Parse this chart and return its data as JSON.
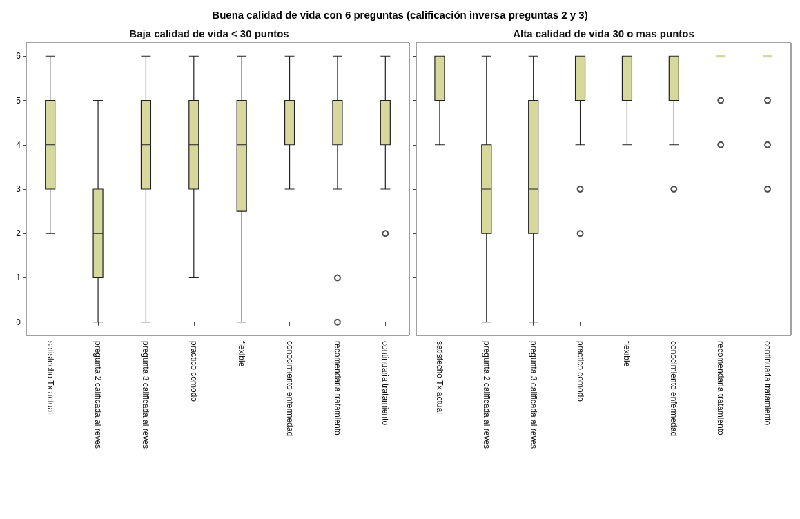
{
  "chart_data": [
    {
      "type": "box",
      "title": "Buena calidad de vida con 6 preguntas (calificación inversa preguntas 2 y 3)",
      "subtitle": "Baja calidad de vida < 30 puntos",
      "categories": [
        "satisfecho Tx actual",
        "pregunta 2 calificada al reves",
        "pregunta 3 calificada al reves",
        "practico comodo",
        "flexible",
        "conocimiento enfermedad",
        "recomendaria tratamiento",
        "continuaria tratamiento"
      ],
      "color": "#d6d89c",
      "boxes": [
        {
          "low": 2,
          "q1": 3,
          "median": 4,
          "q3": 5,
          "high": 6
        },
        {
          "low": 0,
          "q1": 1,
          "median": 2,
          "q3": 3,
          "high": 5
        },
        {
          "low": 0,
          "q1": 3,
          "median": 4,
          "q3": 5,
          "high": 6
        },
        {
          "low": 1,
          "q1": 3,
          "median": 4,
          "q3": 5,
          "high": 6
        },
        {
          "low": 0,
          "q1": 2.5,
          "median": 4,
          "q3": 5,
          "high": 6
        },
        {
          "low": 3,
          "q1": 4,
          "median": 5,
          "q3": 5,
          "high": 6
        },
        {
          "low": 3,
          "q1": 4,
          "median": 5,
          "q3": 5,
          "high": 6,
          "outliers": [
            1,
            0
          ]
        },
        {
          "low": 3,
          "q1": 4,
          "median": 5,
          "q3": 5,
          "high": 6,
          "outliers": [
            2
          ]
        }
      ],
      "ylim": [
        -0.3,
        6.3
      ],
      "yticks": [
        0,
        1,
        2,
        3,
        4,
        5,
        6
      ],
      "grid": false
    },
    {
      "type": "box",
      "subtitle": "Alta calidad de vida 30 o mas puntos",
      "categories": [
        "satisfecho Tx actual",
        "pregunta 2 calificada al reves",
        "pregunta 3 calificada al reves",
        "practico comodo",
        "flexible",
        "conocimiento enfermedad",
        "recomendaria tratamiento",
        "continuaria tratamiento"
      ],
      "color": "#d6d89c",
      "boxes": [
        {
          "low": 4,
          "q1": 5,
          "median": 6,
          "q3": 6,
          "high": 6
        },
        {
          "low": 0,
          "q1": 2,
          "median": 3,
          "q3": 4,
          "high": 6
        },
        {
          "low": 0,
          "q1": 2,
          "median": 3,
          "q3": 5,
          "high": 6
        },
        {
          "low": 4,
          "q1": 5,
          "median": 6,
          "q3": 6,
          "high": 6,
          "outliers": [
            3,
            2
          ]
        },
        {
          "low": 4,
          "q1": 5,
          "median": 6,
          "q3": 6,
          "high": 6
        },
        {
          "low": 4,
          "q1": 5,
          "median": 6,
          "q3": 6,
          "high": 6,
          "outliers": [
            3
          ]
        },
        {
          "low": 6,
          "q1": 6,
          "median": 6,
          "q3": 6,
          "high": 6,
          "outliers": [
            5,
            4
          ]
        },
        {
          "low": 6,
          "q1": 6,
          "median": 6,
          "q3": 6,
          "high": 6,
          "outliers": [
            5,
            4,
            3
          ]
        }
      ],
      "ylim": [
        -0.3,
        6.3
      ],
      "yticks": [
        0,
        1,
        2,
        3,
        4,
        5,
        6
      ],
      "grid": false,
      "tick_labels": "x"
    }
  ]
}
